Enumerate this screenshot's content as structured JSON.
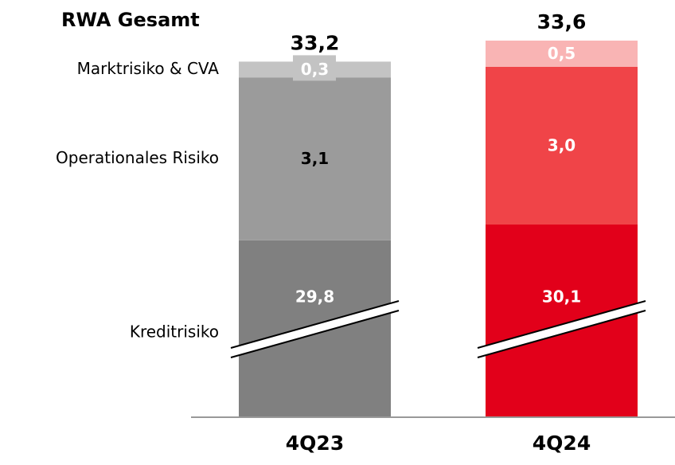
{
  "chart_data": {
    "type": "stacked_bar",
    "title": "RWA Gesamt",
    "categories": [
      "4Q23",
      "4Q24"
    ],
    "series": [
      {
        "name": "Kreditrisiko",
        "colors": [
          "#808080",
          "#e2001a"
        ],
        "values": [
          29.8,
          30.1
        ],
        "value_labels": [
          "29,8",
          "30,1"
        ]
      },
      {
        "name": "Operationales Risiko",
        "colors": [
          "#9b9b9b",
          "#f04448"
        ],
        "values": [
          3.1,
          3.0
        ],
        "value_labels": [
          "3,1",
          "3,0"
        ]
      },
      {
        "name": "Marktrisiko & CVA",
        "colors": [
          "#c3c3c3",
          "#f9b4b4"
        ],
        "values": [
          0.3,
          0.5
        ],
        "value_labels": [
          "0,3",
          "0,5"
        ]
      }
    ],
    "totals": [
      33.2,
      33.6
    ],
    "total_labels": [
      "33,2",
      "33,6"
    ]
  }
}
